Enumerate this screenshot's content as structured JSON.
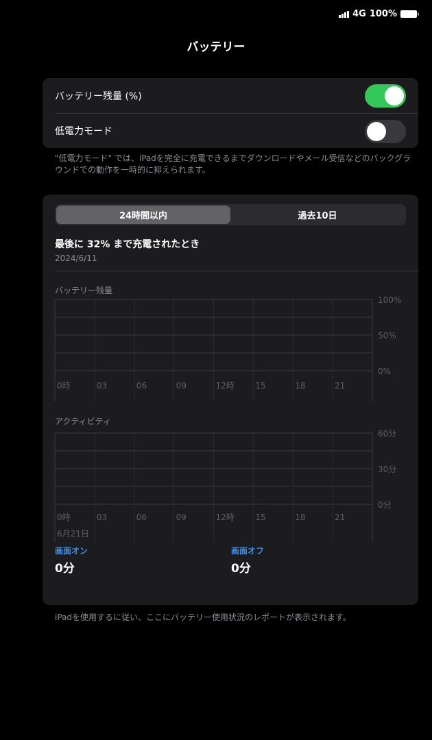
{
  "status_bar": {
    "network": "4G",
    "battery": "100%",
    "battery_level": 1.0
  },
  "header": {
    "title": "バッテリー"
  },
  "settings": {
    "battery_percentage": {
      "label": "バッテリー残量 (%)",
      "on": true
    },
    "low_power_mode": {
      "label": "低電力モード",
      "on": false
    },
    "note": "\"低電力モード\" では、iPadを完全に充電できるまでダウンロードやメール受信などのバックグラウンドでの動作を一時的に抑えられます。"
  },
  "colors": {
    "toggle_on": "#34c759",
    "accent": "#3a8ee8"
  },
  "usage": {
    "tabs": [
      {
        "label": "24時間以内",
        "selected": true
      },
      {
        "label": "過去10日",
        "selected": false
      }
    ],
    "last_charged": "最後に 32% まで充電されたとき",
    "last_charged_date": "2024/6/11",
    "screen_on_label": "画面オン",
    "screen_on_value": "0分",
    "screen_off_label": "画面オフ",
    "screen_off_value": "0分"
  },
  "chart_data": [
    {
      "type": "bar",
      "title": "バッテリー残量",
      "categories": [
        "0時",
        "03",
        "06",
        "09",
        "12時",
        "15",
        "18",
        "21"
      ],
      "y_ticks": [
        "100%",
        "50%",
        "0%"
      ],
      "ylim": [
        0,
        100
      ],
      "grid": true,
      "series": []
    },
    {
      "type": "bar",
      "title": "アクティビティ",
      "categories": [
        "0時",
        "03",
        "06",
        "09",
        "12時",
        "15",
        "18",
        "21"
      ],
      "y_ticks": [
        "60分",
        "30分",
        "0分"
      ],
      "ylim": [
        0,
        60
      ],
      "date_label": "6月21日",
      "grid": true,
      "series": []
    }
  ],
  "footer": "iPadを使用するに従い、ここにバッテリー使用状況のレポートが表示されます。"
}
